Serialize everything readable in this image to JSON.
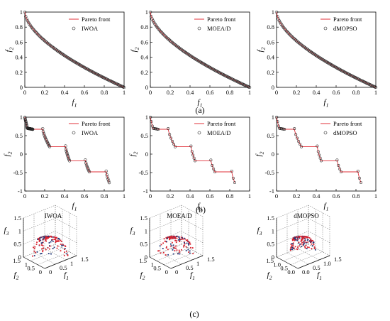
{
  "panel_labels": [
    "(a)",
    "(b)",
    "(c)"
  ],
  "chart_data": [
    {
      "type": "scatter",
      "row": "a",
      "legend": [
        "Pareto front",
        "IWOA"
      ],
      "xlabel": "f1",
      "ylabel": "f2",
      "xlim": [
        0,
        1
      ],
      "ylim": [
        0,
        1
      ],
      "xticks": [
        0,
        0.2,
        0.4,
        0.6,
        0.8,
        1
      ],
      "yticks": [
        0,
        0.2,
        0.4,
        0.6,
        0.8,
        1
      ],
      "front": "1-x^0.6",
      "cloud": "tight"
    },
    {
      "type": "scatter",
      "row": "a",
      "legend": [
        "Pareto front",
        "MOEA/D"
      ],
      "xlabel": "f1",
      "ylabel": "f2",
      "xlim": [
        0,
        1
      ],
      "ylim": [
        0,
        1
      ],
      "xticks": [
        0,
        0.2,
        0.4,
        0.6,
        0.8,
        1
      ],
      "yticks": [
        0,
        0.2,
        0.4,
        0.6,
        0.8,
        1
      ],
      "front": "1-x^0.6",
      "cloud": "tight"
    },
    {
      "type": "scatter",
      "row": "a",
      "legend": [
        "Pareto front",
        "dMOPSO"
      ],
      "xlabel": "f1",
      "ylabel": "f2",
      "xlim": [
        0,
        1
      ],
      "ylim": [
        0,
        1
      ],
      "xticks": [
        0,
        0.2,
        0.4,
        0.6,
        0.8,
        1
      ],
      "yticks": [
        0,
        0.2,
        0.4,
        0.6,
        0.8,
        1
      ],
      "front": "1-x^0.6",
      "cloud": "tight"
    },
    {
      "type": "scatter",
      "row": "b",
      "legend": [
        "Pareto front",
        "IWOA"
      ],
      "xlabel": "f1",
      "ylabel": "f2",
      "xlim": [
        0,
        1
      ],
      "ylim": [
        -1,
        1
      ],
      "xticks": [
        0,
        0.2,
        0.4,
        0.6,
        0.8,
        1
      ],
      "yticks": [
        -1,
        -0.5,
        0,
        0.5,
        1
      ],
      "front": "stair",
      "cloud": "dense"
    },
    {
      "type": "scatter",
      "row": "b",
      "legend": [
        "Pareto front",
        "MOEA/D"
      ],
      "xlabel": "f1",
      "ylabel": "f2",
      "xlim": [
        0,
        1
      ],
      "ylim": [
        -1,
        1
      ],
      "xticks": [
        0,
        0.2,
        0.4,
        0.6,
        0.8,
        1
      ],
      "yticks": [
        -1,
        -0.5,
        0,
        0.5,
        1
      ],
      "front": "stair",
      "cloud": "sparse"
    },
    {
      "type": "scatter",
      "row": "b",
      "legend": [
        "Pareto front",
        "dMOPSO"
      ],
      "xlabel": "f1",
      "ylabel": "f2",
      "xlim": [
        0,
        1
      ],
      "ylim": [
        -1,
        1
      ],
      "xticks": [
        0,
        0.2,
        0.4,
        0.6,
        0.8,
        1
      ],
      "yticks": [
        -1,
        -0.5,
        0,
        0.5,
        1
      ],
      "front": "stair",
      "cloud": "sparse"
    },
    {
      "type": "scatter",
      "row": "c",
      "title": "IWOA",
      "xlabel": "f1",
      "ylabel": "f2",
      "zlabel": "f3",
      "xticks": [
        "0",
        "0.5",
        "1",
        "1.5"
      ],
      "yticks": [
        "0",
        "0.5",
        "1",
        "1.5"
      ],
      "zticks": [
        "0",
        "0.5",
        "1",
        "1.5"
      ],
      "dim": 3
    },
    {
      "type": "scatter",
      "row": "c",
      "title": "MOEA/D",
      "xlabel": "f1",
      "ylabel": "f2",
      "zlabel": "f3",
      "xticks": [
        "0",
        "0.5",
        "1",
        "1.5"
      ],
      "yticks": [
        "0",
        "0.5",
        "1",
        "1.5"
      ],
      "zticks": [
        "0",
        "0.5",
        "1",
        "1.5"
      ],
      "dim": 3
    },
    {
      "type": "scatter",
      "row": "c",
      "title": "dMOPSO",
      "xlabel": "f1",
      "ylabel": "f2",
      "zlabel": "f3",
      "xticks": [
        "0.0",
        "0.5",
        "1.0",
        "1.5"
      ],
      "yticks": [
        "0.0",
        "0.5",
        "1.0",
        "1.5"
      ],
      "zticks": [
        "0",
        "0.5",
        "1",
        "1.5"
      ],
      "dim": 3
    }
  ]
}
